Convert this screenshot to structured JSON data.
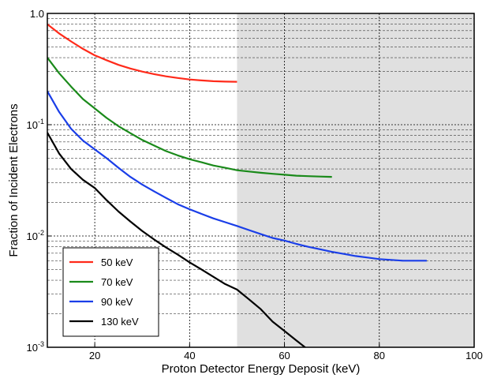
{
  "chart_data": {
    "type": "line",
    "xlabel": "Proton Detector Energy Deposit (keV)",
    "ylabel": "Fraction of Incident Electrons",
    "xlim": [
      10,
      100
    ],
    "ylim": [
      0.001,
      1.0
    ],
    "yscale": "log",
    "grid": true,
    "legend_position": "bottom-left",
    "x_ticks": [
      20,
      40,
      60,
      80,
      100
    ],
    "y_ticks": [
      {
        "value": 0.001,
        "label": "10",
        "exp": "-3"
      },
      {
        "value": 0.01,
        "label": "10",
        "exp": "-2"
      },
      {
        "value": 0.1,
        "label": "10",
        "exp": "-1"
      },
      {
        "value": 1.0,
        "label": "1.0",
        "exp": ""
      }
    ],
    "shaded_region": {
      "x_start": 50,
      "x_end": 100,
      "color": "#e0e0e0"
    },
    "series": [
      {
        "name": "50 keV",
        "color": "#ff2a1a",
        "x": [
          10,
          12.5,
          15,
          17.5,
          20,
          22.5,
          25,
          27.5,
          30,
          32.5,
          35,
          37.5,
          40,
          42.5,
          45,
          47.5,
          50
        ],
        "y": [
          0.8,
          0.66,
          0.56,
          0.48,
          0.42,
          0.38,
          0.345,
          0.32,
          0.3,
          0.285,
          0.272,
          0.263,
          0.255,
          0.25,
          0.246,
          0.244,
          0.243
        ]
      },
      {
        "name": "70 keV",
        "color": "#1a8a1a",
        "x": [
          10,
          12.5,
          15,
          17.5,
          20,
          22.5,
          25,
          27.5,
          30,
          32.5,
          35,
          37.5,
          40,
          42.5,
          45,
          47.5,
          50,
          52.5,
          55,
          57.5,
          60,
          62.5,
          65,
          67.5,
          70
        ],
        "y": [
          0.4,
          0.29,
          0.22,
          0.17,
          0.14,
          0.115,
          0.097,
          0.084,
          0.073,
          0.065,
          0.058,
          0.053,
          0.049,
          0.046,
          0.043,
          0.041,
          0.039,
          0.038,
          0.037,
          0.0362,
          0.0355,
          0.0348,
          0.0345,
          0.0342,
          0.034
        ]
      },
      {
        "name": "90 keV",
        "color": "#1a3ee8",
        "x": [
          10,
          12.5,
          15,
          17.5,
          20,
          22.5,
          25,
          27.5,
          30,
          32.5,
          35,
          37.5,
          40,
          42.5,
          45,
          47.5,
          50,
          52.5,
          55,
          57.5,
          60,
          62.5,
          65,
          67.5,
          70,
          72.5,
          75,
          77.5,
          80,
          82.5,
          85,
          87.5,
          90
        ],
        "y": [
          0.2,
          0.13,
          0.092,
          0.072,
          0.06,
          0.05,
          0.041,
          0.034,
          0.029,
          0.0252,
          0.022,
          0.0193,
          0.0174,
          0.0158,
          0.0144,
          0.0133,
          0.0123,
          0.0113,
          0.0104,
          0.0096,
          0.0091,
          0.0085,
          0.008,
          0.0076,
          0.0072,
          0.0069,
          0.0066,
          0.0064,
          0.0062,
          0.0061,
          0.006,
          0.006,
          0.006
        ]
      },
      {
        "name": "130 keV",
        "color": "#000000",
        "x": [
          10,
          12.5,
          15,
          17.5,
          20,
          22.5,
          25,
          27.5,
          30,
          32.5,
          35,
          37.5,
          40,
          42.5,
          45,
          47.5,
          50,
          52.5,
          55,
          57.5,
          60,
          62.5,
          65
        ],
        "y": [
          0.085,
          0.055,
          0.04,
          0.032,
          0.027,
          0.021,
          0.0166,
          0.0135,
          0.0111,
          0.0093,
          0.0079,
          0.0068,
          0.0058,
          0.005,
          0.0043,
          0.0037,
          0.0033,
          0.0027,
          0.0022,
          0.0017,
          0.0014,
          0.00115,
          0.00095
        ]
      }
    ]
  }
}
